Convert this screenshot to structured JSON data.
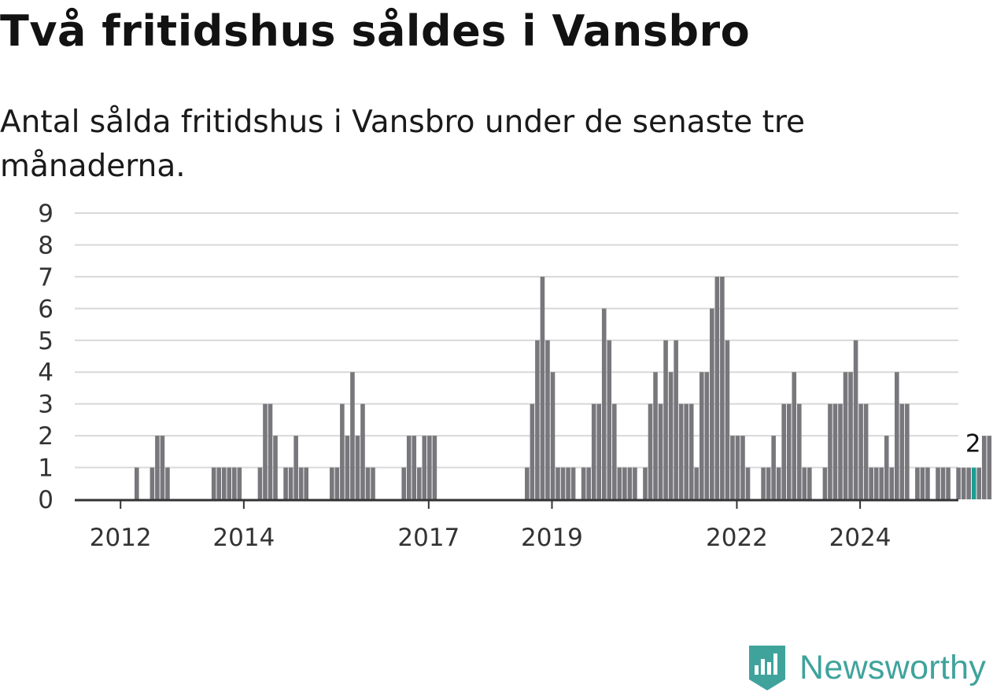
{
  "title": "Två fritidshus såldes i Vansbro",
  "subtitle": "Antal sålda fritidshus i Vansbro under de senaste tre månaderna.",
  "brand": {
    "name": "Newsworthy",
    "icon": "newsworthy-logo-icon",
    "color": "#3fa39c"
  },
  "colors": {
    "bar": "#78777c",
    "highlight": "#1a9e92",
    "grid": "#d8d8d8",
    "axis": "#333333"
  },
  "chart_data": {
    "type": "bar",
    "title": "Två fritidshus såldes i Vansbro",
    "subtitle": "Antal sålda fritidshus i Vansbro under de senaste tre månaderna.",
    "xlabel": "",
    "ylabel": "",
    "ylim": [
      0,
      9
    ],
    "yticks": [
      0,
      1,
      2,
      3,
      4,
      5,
      6,
      7,
      8,
      9
    ],
    "grid": true,
    "legend": "none",
    "x_start": "2011-05",
    "x_step": "month",
    "x_tick_labels": [
      {
        "label": "2012",
        "index": 8
      },
      {
        "label": "2014",
        "index": 32
      },
      {
        "label": "2017",
        "index": 68
      },
      {
        "label": "2019",
        "index": 92
      },
      {
        "label": "2022",
        "index": 128
      },
      {
        "label": "2024",
        "index": 152
      }
    ],
    "values": [
      0,
      0,
      0,
      0,
      0,
      0,
      0,
      0,
      0,
      0,
      0,
      1,
      0,
      0,
      1,
      2,
      2,
      1,
      0,
      0,
      0,
      0,
      0,
      0,
      0,
      0,
      1,
      1,
      1,
      1,
      1,
      1,
      0,
      0,
      0,
      1,
      3,
      3,
      2,
      0,
      1,
      1,
      2,
      1,
      1,
      0,
      0,
      0,
      0,
      1,
      1,
      3,
      2,
      4,
      2,
      3,
      1,
      1,
      0,
      0,
      0,
      0,
      0,
      1,
      2,
      2,
      1,
      2,
      2,
      2,
      0,
      0,
      0,
      0,
      0,
      0,
      0,
      0,
      0,
      0,
      0,
      0,
      0,
      0,
      0,
      0,
      0,
      1,
      3,
      5,
      7,
      5,
      4,
      1,
      1,
      1,
      1,
      0,
      1,
      1,
      3,
      3,
      6,
      5,
      3,
      1,
      1,
      1,
      1,
      0,
      1,
      3,
      4,
      3,
      5,
      4,
      5,
      3,
      3,
      3,
      1,
      4,
      4,
      6,
      7,
      7,
      5,
      2,
      2,
      2,
      1,
      0,
      0,
      1,
      1,
      2,
      1,
      3,
      3,
      4,
      3,
      1,
      1,
      0,
      0,
      1,
      3,
      3,
      3,
      4,
      4,
      5,
      3,
      3,
      1,
      1,
      1,
      2,
      1,
      4,
      3,
      3,
      0,
      1,
      1,
      1,
      0,
      1,
      1,
      1,
      0,
      1,
      1,
      1,
      1,
      1,
      2,
      2
    ],
    "highlight_index": 174,
    "highlight_label": "2"
  }
}
